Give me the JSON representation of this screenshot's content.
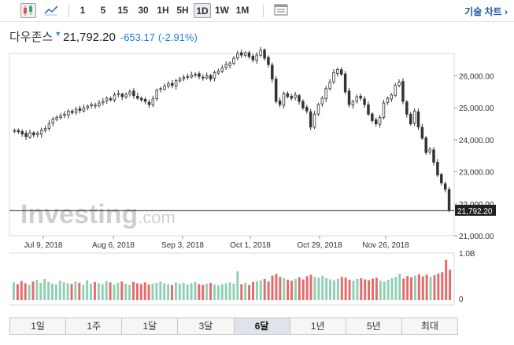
{
  "toolbar": {
    "timeframes": [
      "1",
      "5",
      "15",
      "30",
      "1H",
      "5H",
      "1D",
      "1W",
      "1M"
    ],
    "active_timeframe": "1D",
    "tech_chart_label": "기술 차트 ›"
  },
  "quote": {
    "name": "다우존스",
    "price": "21,792.20",
    "change": "-653.17",
    "change_pct": "(-2.91%)",
    "change_color": "#1a7fd4"
  },
  "watermark": {
    "text_bold": "Investing",
    "text_light": ".com"
  },
  "range_buttons": [
    "1일",
    "1주",
    "1달",
    "3달",
    "6달",
    "1년",
    "5년",
    "최대"
  ],
  "active_range": "6달",
  "colors": {
    "up": "#8fd0b4",
    "down": "#e36b6b",
    "candle": "#333333"
  },
  "chart_data": [
    {
      "type": "candlestick",
      "series_name": "다우존스",
      "x_tick_labels": [
        "Jul 9, 2018",
        "Aug 6, 2018",
        "Sep 3, 2018",
        "Oct 1, 2018",
        "Oct 29, 2018",
        "Nov 26, 2018"
      ],
      "y_tick_labels": [
        "26,000.00",
        "25,000.00",
        "24,000.00",
        "23,000.00",
        "22,000.00",
        "21,000.00"
      ],
      "ylim": [
        21000,
        26700
      ],
      "last_value": 21792.2,
      "last_value_label": "21,792.20",
      "close": [
        24300,
        24250,
        24180,
        24100,
        24220,
        24150,
        24200,
        24300,
        24350,
        24500,
        24650,
        24700,
        24750,
        24800,
        24900,
        24850,
        24950,
        24920,
        25000,
        25050,
        25100,
        25080,
        25150,
        25200,
        25300,
        25250,
        25400,
        25450,
        25350,
        25420,
        25500,
        25380,
        25300,
        25250,
        25200,
        25100,
        25280,
        25550,
        25600,
        25680,
        25750,
        25700,
        25850,
        25900,
        25950,
        25980,
        26020,
        26050,
        25980,
        25950,
        26000,
        25900,
        26100,
        26150,
        26250,
        26350,
        26400,
        26550,
        26700,
        26650,
        26720,
        26600,
        26500,
        26650,
        26800,
        26550,
        26350,
        25900,
        25200,
        25100,
        25450,
        25350,
        25300,
        25400,
        25200,
        25000,
        24900,
        24400,
        24800,
        25100,
        25300,
        25600,
        25800,
        26100,
        26200,
        26050,
        25500,
        25100,
        25200,
        25350,
        25300,
        25100,
        24800,
        24600,
        24500,
        24700,
        25150,
        25300,
        25400,
        25700,
        25800,
        25200,
        24800,
        24500,
        24900,
        24400,
        24050,
        23600,
        23700,
        23300,
        22900,
        22650,
        22450,
        21792
      ],
      "volume_label": "1.0B",
      "volume_min_label": "0",
      "volume_max": 1.0,
      "volume": [
        0.42,
        0.38,
        0.45,
        0.4,
        0.36,
        0.44,
        0.48,
        0.41,
        0.5,
        0.43,
        0.39,
        0.37,
        0.46,
        0.42,
        0.4,
        0.38,
        0.44,
        0.41,
        0.36,
        0.47,
        0.39,
        0.43,
        0.4,
        0.38,
        0.45,
        0.42,
        0.37,
        0.41,
        0.44,
        0.39,
        0.36,
        0.43,
        0.4,
        0.38,
        0.42,
        0.37,
        0.39,
        0.41,
        0.44,
        0.4,
        0.38,
        0.36,
        0.42,
        0.39,
        0.41,
        0.37,
        0.4,
        0.43,
        0.38,
        0.36,
        0.39,
        0.41,
        0.37,
        0.35,
        0.38,
        0.4,
        0.42,
        0.39,
        0.68,
        0.38,
        0.41,
        0.36,
        0.43,
        0.45,
        0.47,
        0.5,
        0.44,
        0.58,
        0.62,
        0.55,
        0.52,
        0.48,
        0.46,
        0.5,
        0.54,
        0.49,
        0.57,
        0.6,
        0.55,
        0.53,
        0.58,
        0.52,
        0.49,
        0.47,
        0.51,
        0.55,
        0.53,
        0.48,
        0.46,
        0.5,
        0.52,
        0.49,
        0.47,
        0.51,
        0.53,
        0.46,
        0.44,
        0.48,
        0.52,
        0.55,
        0.62,
        0.51,
        0.57,
        0.54,
        0.58,
        0.61,
        0.56,
        0.6,
        0.55,
        0.59,
        0.63,
        0.66,
        0.95,
        0.72
      ]
    }
  ]
}
